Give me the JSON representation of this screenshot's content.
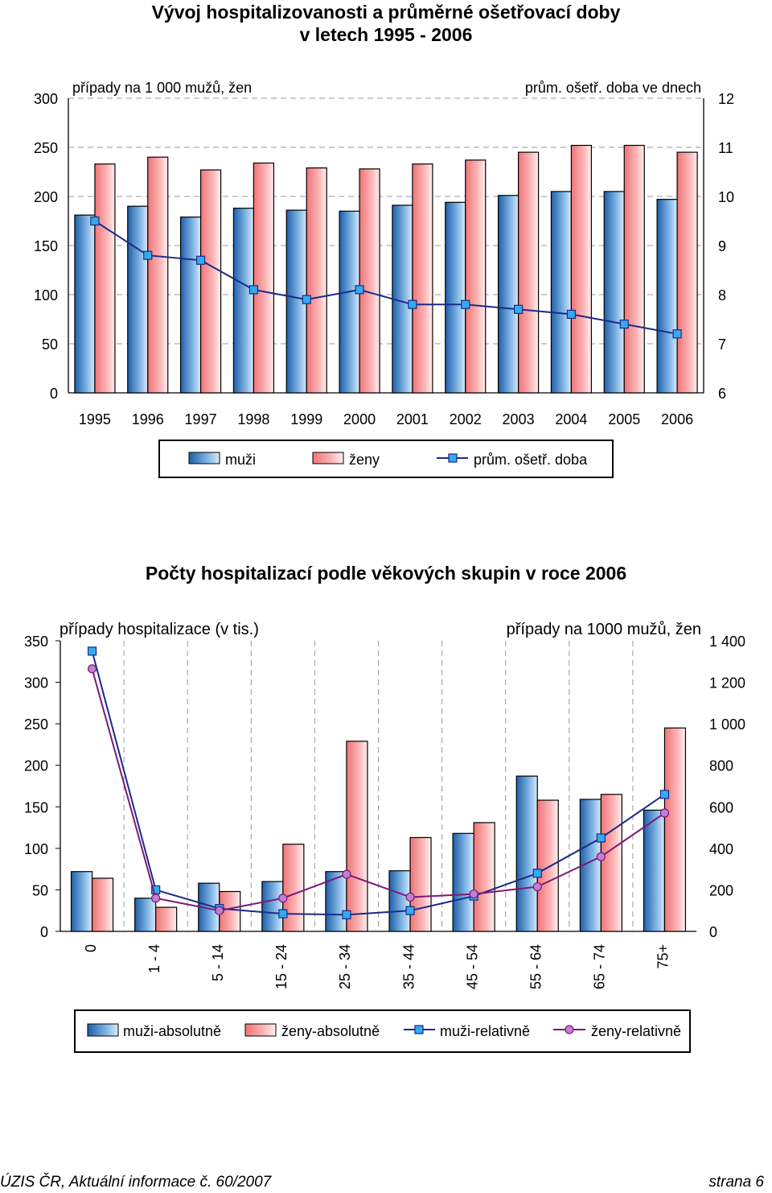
{
  "page": {
    "chart1_title_line1": "Vývoj hospitalizovanosti a průměrné ošetřovací doby",
    "chart1_title_line2": "v letech 1995 - 2006",
    "chart2_title": "Počty hospitalizací podle věkových skupin v roce 2006",
    "footer_left": "ÚZIS ČR, Aktuální informace č. 60/2007",
    "footer_right": "strana 6"
  },
  "colors": {
    "men_bar": "#3a7fc0",
    "women_bar": "#f5888a",
    "men_line": "#1c2a8a",
    "men_marker": "#33aaee",
    "women_line": "#7a1a7a",
    "women_marker": "#c080d0"
  },
  "chart_data": [
    {
      "type": "bar",
      "title": "Vývoj hospitalizovanosti a průměrné ošetřovací doby v letech 1995 - 2006",
      "left_axis_label": "případy na 1 000 mužů, žen",
      "right_axis_label": "prům. ošetř. doba ve dnech",
      "categories": [
        "1995",
        "1996",
        "1997",
        "1998",
        "1999",
        "2000",
        "2001",
        "2002",
        "2003",
        "2004",
        "2005",
        "2006"
      ],
      "ylim_left": [
        0,
        300
      ],
      "yticks_left": [
        "0",
        "50",
        "100",
        "150",
        "200",
        "250",
        "300"
      ],
      "ylim_right": [
        6,
        12
      ],
      "yticks_right": [
        "6",
        "7",
        "8",
        "9",
        "10",
        "11",
        "12"
      ],
      "grid": "horizontal dashed",
      "legend_position": "bottom",
      "series": [
        {
          "name": "muži",
          "kind": "bar",
          "axis": "left",
          "values": [
            181,
            190,
            179,
            188,
            186,
            185,
            191,
            194,
            201,
            205,
            205,
            197
          ]
        },
        {
          "name": "ženy",
          "kind": "bar",
          "axis": "left",
          "values": [
            233,
            240,
            227,
            234,
            229,
            228,
            233,
            237,
            245,
            252,
            252,
            245
          ]
        },
        {
          "name": "prům. ošetř. doba",
          "kind": "line",
          "axis": "right",
          "values": [
            9.5,
            8.8,
            8.7,
            8.1,
            7.9,
            8.1,
            7.8,
            7.8,
            7.7,
            7.6,
            7.4,
            7.2
          ]
        }
      ]
    },
    {
      "type": "bar",
      "title": "Počty hospitalizací podle věkových skupin v roce 2006",
      "left_axis_label": "případy hospitalizace (v tis.)",
      "right_axis_label": "případy na 1000 mužů, žen",
      "categories": [
        "0",
        "1 - 4",
        "5 - 14",
        "15 - 24",
        "25 - 34",
        "35 - 44",
        "45 - 54",
        "55 - 64",
        "65 - 74",
        "75+"
      ],
      "ylim_left": [
        0,
        350
      ],
      "yticks_left": [
        "0",
        "50",
        "100",
        "150",
        "200",
        "250",
        "300",
        "350"
      ],
      "ylim_right": [
        0,
        1400
      ],
      "yticks_right": [
        "0",
        "200",
        "400",
        "600",
        "800",
        "1 000",
        "1 200",
        "1 400"
      ],
      "grid": "vertical dashed",
      "legend_position": "bottom",
      "series": [
        {
          "name": "muži-absolutně",
          "kind": "bar",
          "axis": "left",
          "values": [
            72,
            40,
            58,
            60,
            72,
            73,
            118,
            187,
            159,
            146
          ]
        },
        {
          "name": "ženy-absolutně",
          "kind": "bar",
          "axis": "left",
          "values": [
            64,
            29,
            48,
            105,
            229,
            113,
            131,
            158,
            165,
            245
          ]
        },
        {
          "name": "muži-relativně",
          "kind": "line",
          "axis": "right",
          "values": [
            1350,
            200,
            110,
            85,
            80,
            100,
            170,
            280,
            450,
            660
          ]
        },
        {
          "name": "ženy-relativně",
          "kind": "line",
          "axis": "right",
          "values": [
            1265,
            160,
            100,
            160,
            275,
            165,
            180,
            215,
            360,
            570
          ]
        }
      ]
    }
  ]
}
